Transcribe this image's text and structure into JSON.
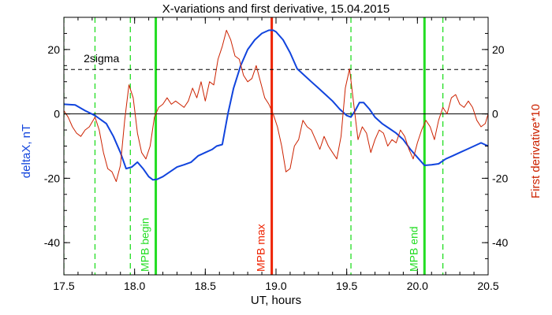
{
  "chart_data": {
    "type": "line",
    "title": "X-variations and first derivative, 15.04.2015",
    "xlabel": "UT, hours",
    "ylabel_left": "deltaX, nT",
    "ylabel_right": "First derivative*10",
    "xlim": [
      17.5,
      20.5
    ],
    "ylim": [
      -50,
      30
    ],
    "x_ticks": [
      17.5,
      18.0,
      18.5,
      19.0,
      19.5,
      20.0,
      20.5
    ],
    "x_tick_labels": [
      "17.5",
      "18.0",
      "18.5",
      "19.0",
      "19.5",
      "20.0",
      "20.5"
    ],
    "y_ticks": [
      20,
      0,
      -20,
      -40
    ],
    "y_tick_labels": [
      "20",
      "0",
      "-20",
      "-40"
    ],
    "grid": false,
    "threshold": {
      "label": "2sigma",
      "value": 13.8,
      "color": "#000000",
      "style": "dashed"
    },
    "zero_line": 0,
    "vertical_lines": [
      {
        "x": 18.15,
        "color": "#22dd22",
        "style": "solid",
        "label": "MPB begin"
      },
      {
        "x": 18.97,
        "color": "#ee2200",
        "style": "solid",
        "label": "MPB max"
      },
      {
        "x": 20.05,
        "color": "#22dd22",
        "style": "solid",
        "label": "MPB end"
      },
      {
        "x": 17.5,
        "color": "#22dd22",
        "style": "dashed",
        "label": ""
      },
      {
        "x": 17.72,
        "color": "#22dd22",
        "style": "dashed",
        "label": ""
      },
      {
        "x": 17.97,
        "color": "#22dd22",
        "style": "dashed",
        "label": ""
      },
      {
        "x": 19.53,
        "color": "#22dd22",
        "style": "dashed",
        "label": ""
      },
      {
        "x": 20.18,
        "color": "#22dd22",
        "style": "dashed",
        "label": ""
      }
    ],
    "series": [
      {
        "color": "#1144dd",
        "width": 2,
        "x": [
          17.5,
          17.58,
          17.65,
          17.72,
          17.8,
          17.85,
          17.9,
          17.94,
          17.98,
          18.02,
          18.06,
          18.1,
          18.13,
          18.16,
          18.2,
          18.25,
          18.3,
          18.35,
          18.4,
          18.45,
          18.5,
          18.55,
          18.58,
          18.62,
          18.66,
          18.7,
          18.75,
          18.8,
          18.85,
          18.9,
          18.95,
          18.98,
          19.0,
          19.05,
          19.1,
          19.15,
          19.2,
          19.25,
          19.3,
          19.35,
          19.4,
          19.45,
          19.5,
          19.53,
          19.56,
          19.59,
          19.62,
          19.66,
          19.7,
          19.75,
          19.8,
          19.85,
          19.9,
          19.95,
          20.0,
          20.05,
          20.1,
          20.15,
          20.2,
          20.25,
          20.3,
          20.35,
          20.4,
          20.45,
          20.5
        ],
        "y": [
          3,
          2.8,
          1.0,
          -0.5,
          -3,
          -7,
          -12,
          -17,
          -16.5,
          -15,
          -17,
          -19.5,
          -20.5,
          -20.3,
          -19.5,
          -18,
          -16.5,
          -15.8,
          -15,
          -13,
          -12,
          -11,
          -10,
          -9.5,
          0,
          8,
          15,
          20,
          23,
          25,
          26,
          26,
          25.5,
          23,
          19,
          14,
          12,
          10,
          8,
          6,
          4,
          1.5,
          -0.5,
          -1,
          1,
          3.5,
          3.5,
          1.5,
          -1,
          -3,
          -4.5,
          -6,
          -8,
          -11,
          -13.5,
          -16,
          -15.8,
          -15.5,
          -14,
          -13,
          -12,
          -11,
          -10,
          -9,
          -10
        ]
      },
      {
        "color": "#cc2200",
        "width": 1,
        "x": [
          17.5,
          17.53,
          17.56,
          17.59,
          17.62,
          17.65,
          17.68,
          17.72,
          17.75,
          17.78,
          17.81,
          17.84,
          17.87,
          17.9,
          17.93,
          17.96,
          17.99,
          18.02,
          18.05,
          18.08,
          18.11,
          18.14,
          18.17,
          18.2,
          18.23,
          18.26,
          18.29,
          18.32,
          18.35,
          18.38,
          18.41,
          18.44,
          18.47,
          18.5,
          18.53,
          18.56,
          18.59,
          18.62,
          18.65,
          18.68,
          18.71,
          18.74,
          18.77,
          18.8,
          18.83,
          18.86,
          18.89,
          18.92,
          18.95,
          18.98,
          19.01,
          19.04,
          19.07,
          19.1,
          19.13,
          19.16,
          19.19,
          19.22,
          19.25,
          19.28,
          19.31,
          19.34,
          19.37,
          19.4,
          19.43,
          19.46,
          19.49,
          19.52,
          19.55,
          19.58,
          19.61,
          19.64,
          19.67,
          19.7,
          19.73,
          19.76,
          19.79,
          19.82,
          19.85,
          19.88,
          19.91,
          19.94,
          19.97,
          20.0,
          20.03,
          20.06,
          20.09,
          20.12,
          20.15,
          20.18,
          20.21,
          20.24,
          20.27,
          20.3,
          20.33,
          20.36,
          20.39,
          20.42,
          20.45,
          20.48,
          20.5
        ],
        "y": [
          1,
          -1,
          -4,
          -6,
          -7,
          -5,
          -4,
          -1,
          -5,
          -12,
          -17,
          -18,
          -21,
          -16,
          -2,
          9,
          5,
          -6,
          -12,
          -14,
          -10,
          -1,
          2,
          3,
          5,
          3,
          4,
          3,
          2,
          4,
          8,
          5,
          10,
          4,
          10,
          9,
          17,
          21,
          26,
          23,
          18,
          17,
          12,
          10,
          11,
          15,
          10,
          5,
          3,
          0,
          -4,
          -10,
          -18,
          -17,
          -10,
          -8,
          -2,
          -4,
          -5,
          -8,
          -11,
          -7,
          -10,
          -12,
          -14,
          -7,
          8,
          14,
          3,
          -8,
          -4,
          -6,
          -12,
          -8,
          -5,
          -6,
          -10,
          -8,
          -9,
          -5,
          -7,
          -11,
          -14,
          -9,
          -5,
          -2,
          -4,
          -8,
          -2,
          2,
          0,
          5,
          6,
          3,
          2,
          4,
          2,
          -2,
          -4,
          -3,
          0
        ]
      }
    ]
  }
}
